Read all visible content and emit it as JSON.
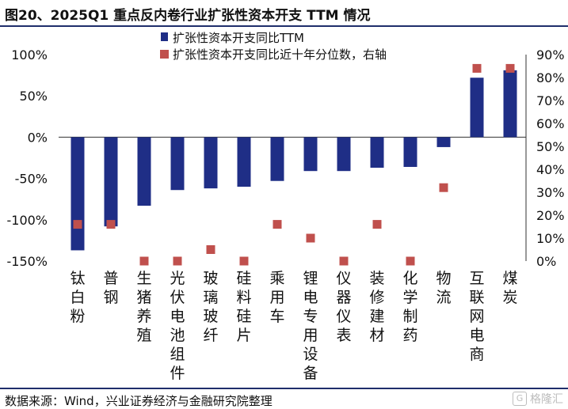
{
  "header": {
    "title": "图20、2025Q1 重点反内卷行业扩张性资本开支 TTM 情况"
  },
  "footer": {
    "source": "数据来源：Wind，兴业证券经济与金融研究院整理",
    "watermark_text": "格隆汇",
    "watermark_icon": "G"
  },
  "colors": {
    "bar": "#1f2e86",
    "dot": "#c0504d",
    "rule": "#1f2e6b"
  },
  "chart_data": {
    "type": "bar",
    "title": "",
    "categories": [
      "钛白粉",
      "普钢",
      "生猪养殖",
      "光伏电池组件",
      "玻璃玻纤",
      "硅料硅片",
      "乘用车",
      "锂电专用设备",
      "仪器仪表",
      "装修建材",
      "化学制药",
      "物流",
      "互联网电商",
      "煤炭"
    ],
    "series": [
      {
        "name": "扩张性资本开支同比TTM",
        "type": "bar",
        "axis": "left",
        "values": [
          -137,
          -108,
          -83,
          -64,
          -62,
          -60,
          -53,
          -41,
          -41,
          -37,
          -36,
          -12,
          72,
          81
        ]
      },
      {
        "name": "扩张性资本开支同比近十年分位数，右轴",
        "type": "scatter",
        "axis": "right",
        "values": [
          16,
          16,
          0,
          0,
          5,
          0,
          16,
          10,
          0,
          16,
          0,
          32,
          84,
          84
        ]
      }
    ],
    "left_axis": {
      "ticks": [
        "100%",
        "50%",
        "0%",
        "-50%",
        "-100%",
        "-150%"
      ],
      "ylim": [
        -150,
        100
      ]
    },
    "right_axis": {
      "ticks": [
        "90%",
        "80%",
        "70%",
        "60%",
        "50%",
        "40%",
        "30%",
        "20%",
        "10%",
        "0%"
      ],
      "ylim": [
        0,
        90
      ]
    },
    "legend_position": "top"
  }
}
